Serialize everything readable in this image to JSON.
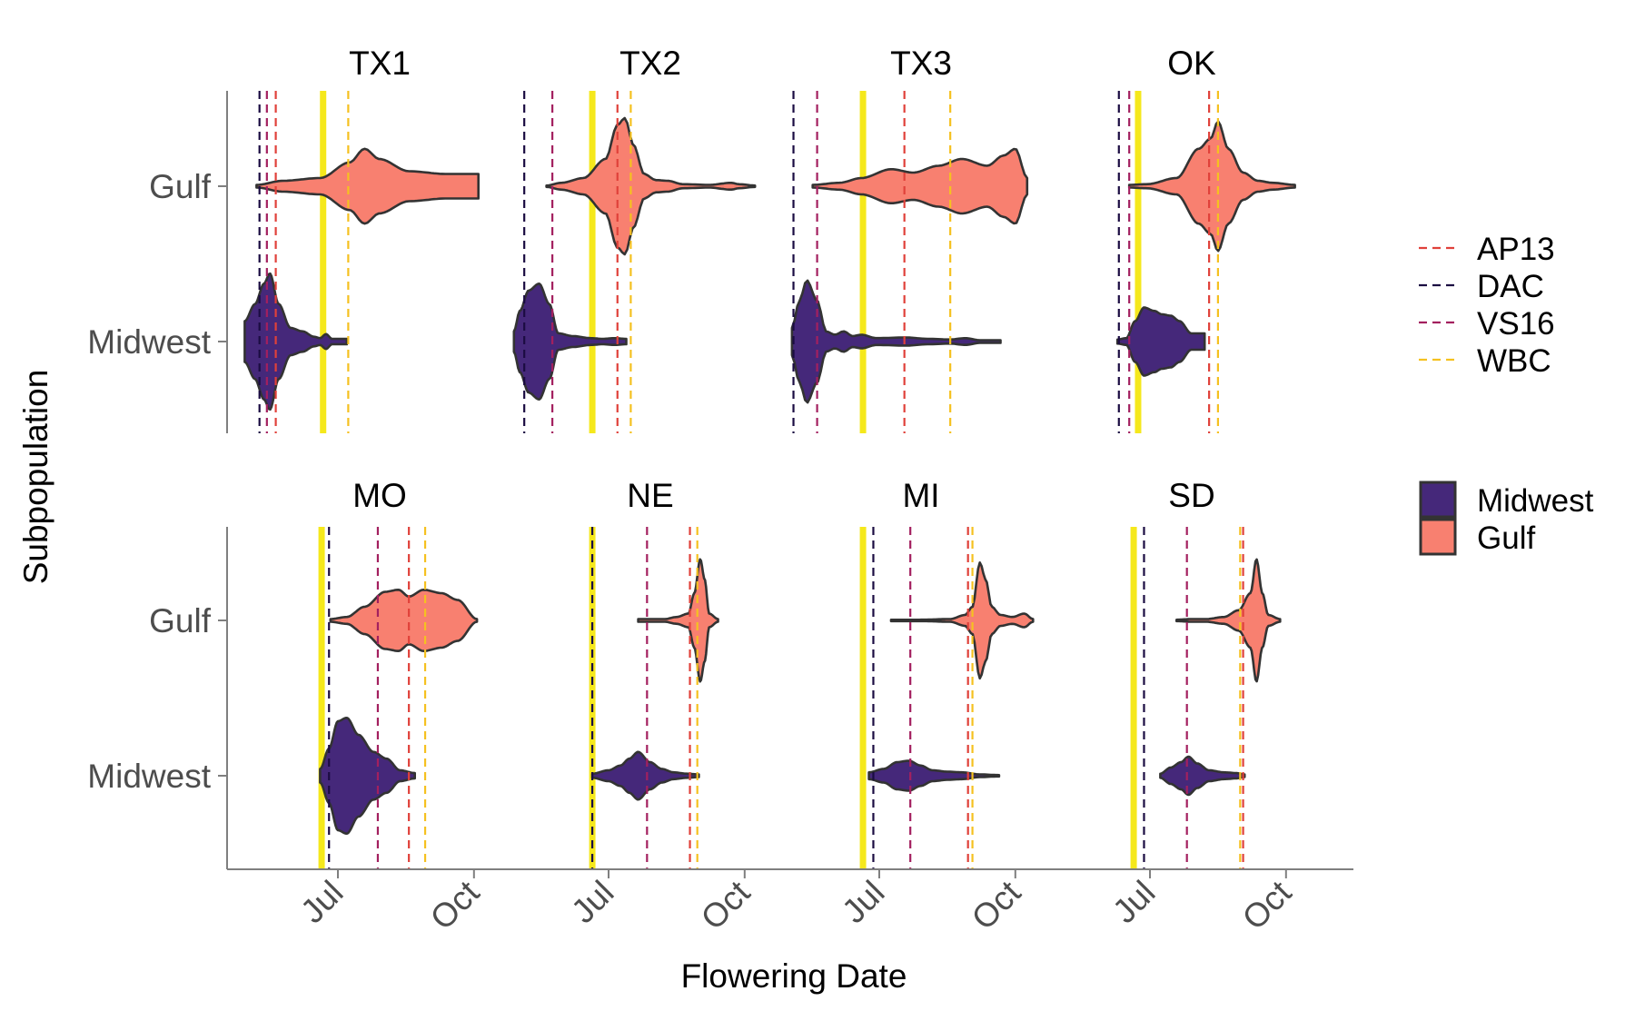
{
  "chart_data": {
    "type": "violin",
    "xlabel": "Flowering Date",
    "ylabel": "Subpopulation",
    "x_ticks": [
      {
        "label": "Jul",
        "day": 182
      },
      {
        "label": "Oct",
        "day": 274
      }
    ],
    "x_range_day": [
      112,
      295
    ],
    "categories": [
      "Gulf",
      "Midwest"
    ],
    "colors": {
      "Midwest": "#45287a",
      "Gulf": "#f88070",
      "outline": "#333333",
      "AP13": "#e0413a",
      "DAC": "#1b0c42",
      "VS16": "#a3205f",
      "WBC": "#f5c120",
      "solstice": "#f5e81c"
    },
    "vline_legend": [
      {
        "name": "AP13",
        "color": "#e0413a"
      },
      {
        "name": "DAC",
        "color": "#1b0c42"
      },
      {
        "name": "VS16",
        "color": "#a3205f"
      },
      {
        "name": "WBC",
        "color": "#f5c120"
      }
    ],
    "fill_legend": [
      {
        "name": "Midwest",
        "color": "#45287a"
      },
      {
        "name": "Gulf",
        "color": "#f88070"
      }
    ],
    "panels": [
      {
        "name": "TX1",
        "solstice": 172,
        "vlines": {
          "AP13": 140,
          "DAC": 129,
          "VS16": 134,
          "WBC": 189
        },
        "violins": {
          "Gulf": {
            "min": 127,
            "max": 277,
            "knots": [
              [
                127,
                0.02
              ],
              [
                145,
                0.08
              ],
              [
                170,
                0.12
              ],
              [
                190,
                0.35
              ],
              [
                200,
                0.55
              ],
              [
                210,
                0.4
              ],
              [
                230,
                0.22
              ],
              [
                255,
                0.18
              ],
              [
                277,
                0.18
              ]
            ]
          },
          "Midwest": {
            "min": 119,
            "max": 188,
            "knots": [
              [
                119,
                0.3
              ],
              [
                126,
                0.55
              ],
              [
                132,
                0.85
              ],
              [
                136,
                1.0
              ],
              [
                142,
                0.55
              ],
              [
                150,
                0.2
              ],
              [
                158,
                0.15
              ],
              [
                166,
                0.07
              ],
              [
                170,
                0.05
              ],
              [
                174,
                0.11
              ],
              [
                178,
                0.04
              ],
              [
                188,
                0.04
              ]
            ]
          }
        }
      },
      {
        "name": "TX2",
        "solstice": 171,
        "vlines": {
          "AP13": 188,
          "DAC": 125,
          "VS16": 144,
          "WBC": 197
        },
        "violins": {
          "Gulf": {
            "min": 140,
            "max": 281,
            "knots": [
              [
                140,
                0.01
              ],
              [
                150,
                0.05
              ],
              [
                165,
                0.12
              ],
              [
                180,
                0.4
              ],
              [
                188,
                0.9
              ],
              [
                193,
                1.0
              ],
              [
                199,
                0.6
              ],
              [
                206,
                0.18
              ],
              [
                214,
                0.09
              ],
              [
                222,
                0.08
              ],
              [
                232,
                0.03
              ],
              [
                250,
                0.02
              ],
              [
                265,
                0.05
              ],
              [
                270,
                0.03
              ],
              [
                281,
                0.01
              ]
            ]
          },
          "Midwest": {
            "min": 118,
            "max": 194,
            "knots": [
              [
                118,
                0.15
              ],
              [
                122,
                0.45
              ],
              [
                128,
                0.75
              ],
              [
                135,
                0.85
              ],
              [
                142,
                0.55
              ],
              [
                148,
                0.12
              ],
              [
                158,
                0.08
              ],
              [
                170,
                0.05
              ],
              [
                178,
                0.04
              ],
              [
                186,
                0.05
              ],
              [
                194,
                0.04
              ]
            ]
          }
        }
      },
      {
        "name": "TX3",
        "solstice": 171,
        "vlines": {
          "AP13": 199,
          "DAC": 124,
          "VS16": 140,
          "WBC": 230
        },
        "violins": {
          "Gulf": {
            "min": 137,
            "max": 282,
            "knots": [
              [
                137,
                0.02
              ],
              [
                155,
                0.05
              ],
              [
                170,
                0.12
              ],
              [
                190,
                0.25
              ],
              [
                205,
                0.2
              ],
              [
                222,
                0.3
              ],
              [
                238,
                0.4
              ],
              [
                255,
                0.3
              ],
              [
                266,
                0.45
              ],
              [
                274,
                0.55
              ],
              [
                282,
                0.12
              ]
            ]
          },
          "Midwest": {
            "min": 123,
            "max": 264,
            "knots": [
              [
                123,
                0.2
              ],
              [
                128,
                0.6
              ],
              [
                133,
                0.9
              ],
              [
                140,
                0.6
              ],
              [
                146,
                0.15
              ],
              [
                152,
                0.1
              ],
              [
                158,
                0.15
              ],
              [
                164,
                0.08
              ],
              [
                170,
                0.1
              ],
              [
                180,
                0.05
              ],
              [
                200,
                0.06
              ],
              [
                215,
                0.04
              ],
              [
                230,
                0.03
              ],
              [
                240,
                0.05
              ],
              [
                250,
                0.02
              ],
              [
                264,
                0.02
              ]
            ]
          }
        }
      },
      {
        "name": "OK",
        "solstice": 174,
        "vlines": {
          "AP13": 222,
          "DAC": 161,
          "VS16": 168,
          "WBC": 228
        },
        "violins": {
          "Gulf": {
            "min": 168,
            "max": 280,
            "knots": [
              [
                168,
                0.02
              ],
              [
                180,
                0.03
              ],
              [
                200,
                0.12
              ],
              [
                215,
                0.55
              ],
              [
                223,
                0.7
              ],
              [
                228,
                0.95
              ],
              [
                235,
                0.55
              ],
              [
                245,
                0.2
              ],
              [
                255,
                0.08
              ],
              [
                265,
                0.05
              ],
              [
                280,
                0.02
              ]
            ]
          },
          "Midwest": {
            "min": 160,
            "max": 219,
            "knots": [
              [
                160,
                0.03
              ],
              [
                166,
                0.05
              ],
              [
                172,
                0.3
              ],
              [
                178,
                0.5
              ],
              [
                185,
                0.45
              ],
              [
                190,
                0.4
              ],
              [
                196,
                0.38
              ],
              [
                202,
                0.3
              ],
              [
                210,
                0.12
              ],
              [
                219,
                0.12
              ]
            ]
          }
        }
      },
      {
        "name": "MO",
        "solstice": 171,
        "vlines": {
          "AP13": 230,
          "DAC": 176,
          "VS16": 209,
          "WBC": 241
        },
        "violins": {
          "Gulf": {
            "min": 177,
            "max": 276,
            "knots": [
              [
                177,
                0.02
              ],
              [
                188,
                0.05
              ],
              [
                200,
                0.2
              ],
              [
                214,
                0.42
              ],
              [
                223,
                0.45
              ],
              [
                230,
                0.35
              ],
              [
                240,
                0.45
              ],
              [
                252,
                0.4
              ],
              [
                263,
                0.3
              ],
              [
                276,
                0.02
              ]
            ]
          },
          "Midwest": {
            "min": 170,
            "max": 234,
            "knots": [
              [
                170,
                0.1
              ],
              [
                176,
                0.4
              ],
              [
                182,
                0.8
              ],
              [
                188,
                0.85
              ],
              [
                196,
                0.6
              ],
              [
                206,
                0.35
              ],
              [
                215,
                0.25
              ],
              [
                224,
                0.08
              ],
              [
                234,
                0.04
              ]
            ]
          }
        }
      },
      {
        "name": "NE",
        "solstice": 171,
        "vlines": {
          "AP13": 237,
          "DAC": 171,
          "VS16": 208,
          "WBC": 242
        },
        "violins": {
          "Gulf": {
            "min": 202,
            "max": 256,
            "knots": [
              [
                202,
                0.02
              ],
              [
                212,
                0.02
              ],
              [
                220,
                0.02
              ],
              [
                228,
                0.05
              ],
              [
                236,
                0.1
              ],
              [
                240,
                0.4
              ],
              [
                244,
                0.9
              ],
              [
                247,
                0.6
              ],
              [
                250,
                0.1
              ],
              [
                256,
                0.02
              ]
            ]
          },
          "Midwest": {
            "min": 171,
            "max": 243,
            "knots": [
              [
                171,
                0.03
              ],
              [
                182,
                0.08
              ],
              [
                190,
                0.15
              ],
              [
                196,
                0.25
              ],
              [
                202,
                0.35
              ],
              [
                210,
                0.2
              ],
              [
                218,
                0.1
              ],
              [
                226,
                0.05
              ],
              [
                235,
                0.03
              ],
              [
                243,
                0.02
              ]
            ]
          }
        }
      },
      {
        "name": "MI",
        "solstice": 171,
        "vlines": {
          "AP13": 242,
          "DAC": 178,
          "VS16": 203,
          "WBC": 245
        },
        "violins": {
          "Gulf": {
            "min": 190,
            "max": 286,
            "knots": [
              [
                190,
                0.01
              ],
              [
                210,
                0.01
              ],
              [
                230,
                0.02
              ],
              [
                240,
                0.08
              ],
              [
                245,
                0.2
              ],
              [
                250,
                0.85
              ],
              [
                254,
                0.6
              ],
              [
                258,
                0.2
              ],
              [
                264,
                0.08
              ],
              [
                272,
                0.05
              ],
              [
                280,
                0.1
              ],
              [
                286,
                0.02
              ]
            ]
          },
          "Midwest": {
            "min": 175,
            "max": 263,
            "knots": [
              [
                175,
                0.05
              ],
              [
                185,
                0.1
              ],
              [
                194,
                0.2
              ],
              [
                202,
                0.22
              ],
              [
                210,
                0.15
              ],
              [
                218,
                0.08
              ],
              [
                228,
                0.06
              ],
              [
                238,
                0.05
              ],
              [
                250,
                0.02
              ],
              [
                263,
                0.01
              ]
            ]
          }
        }
      },
      {
        "name": "SD",
        "solstice": 171,
        "vlines": {
          "AP13": 245,
          "DAC": 178,
          "VS16": 207,
          "WBC": 243
        },
        "violins": {
          "Gulf": {
            "min": 200,
            "max": 270,
            "knots": [
              [
                200,
                0.01
              ],
              [
                210,
                0.02
              ],
              [
                220,
                0.02
              ],
              [
                232,
                0.05
              ],
              [
                242,
                0.15
              ],
              [
                250,
                0.4
              ],
              [
                254,
                0.9
              ],
              [
                258,
                0.4
              ],
              [
                262,
                0.08
              ],
              [
                270,
                0.02
              ]
            ]
          },
          "Midwest": {
            "min": 189,
            "max": 246,
            "knots": [
              [
                189,
                0.03
              ],
              [
                196,
                0.12
              ],
              [
                203,
                0.2
              ],
              [
                208,
                0.28
              ],
              [
                214,
                0.18
              ],
              [
                222,
                0.08
              ],
              [
                232,
                0.05
              ],
              [
                240,
                0.04
              ],
              [
                246,
                0.02
              ]
            ]
          }
        }
      }
    ]
  }
}
